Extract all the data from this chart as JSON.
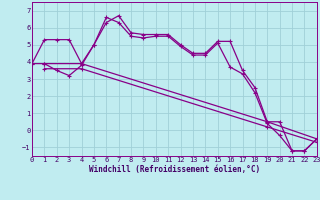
{
  "xlabel": "Windchill (Refroidissement éolien,°C)",
  "background_color": "#c0ecf0",
  "grid_color": "#a0d0d8",
  "line_color": "#880088",
  "xlim": [
    0,
    23
  ],
  "ylim": [
    -1.5,
    7.5
  ],
  "yticks": [
    -1,
    0,
    1,
    2,
    3,
    4,
    5,
    6,
    7
  ],
  "xticks": [
    0,
    1,
    2,
    3,
    4,
    5,
    6,
    7,
    8,
    9,
    10,
    11,
    12,
    13,
    14,
    15,
    16,
    17,
    18,
    19,
    20,
    21,
    22,
    23
  ],
  "line1_x": [
    0,
    1,
    2,
    3,
    4,
    5,
    6,
    7,
    8,
    9,
    10,
    11,
    12,
    13,
    14,
    15,
    16,
    17,
    18,
    19,
    20,
    21,
    22,
    23
  ],
  "line1_y": [
    3.9,
    5.3,
    5.3,
    5.3,
    3.9,
    5.0,
    6.3,
    6.7,
    5.7,
    5.6,
    5.6,
    5.6,
    5.0,
    4.5,
    4.5,
    5.2,
    5.2,
    3.5,
    2.5,
    0.5,
    0.5,
    -1.2,
    -1.2,
    -0.5
  ],
  "line2_x": [
    0,
    1,
    2,
    3,
    4,
    5,
    6,
    7,
    8,
    9,
    10,
    11,
    12,
    13,
    14,
    15,
    16,
    17,
    18,
    19,
    20,
    21,
    22,
    23
  ],
  "line2_y": [
    3.9,
    3.9,
    3.5,
    3.2,
    3.8,
    5.0,
    6.6,
    6.3,
    5.5,
    5.4,
    5.5,
    5.5,
    4.9,
    4.4,
    4.4,
    5.1,
    3.7,
    3.3,
    2.2,
    0.4,
    -0.3,
    -1.2,
    -1.2,
    -0.5
  ],
  "line3_x": [
    1,
    4,
    19,
    23
  ],
  "line3_y": [
    3.9,
    3.9,
    0.5,
    -0.5
  ],
  "line4_x": [
    1,
    4,
    19,
    23
  ],
  "line4_y": [
    3.6,
    3.6,
    0.2,
    -0.7
  ],
  "markersize": 3,
  "linewidth": 0.9,
  "tick_fontsize": 5,
  "xlabel_fontsize": 5.5
}
